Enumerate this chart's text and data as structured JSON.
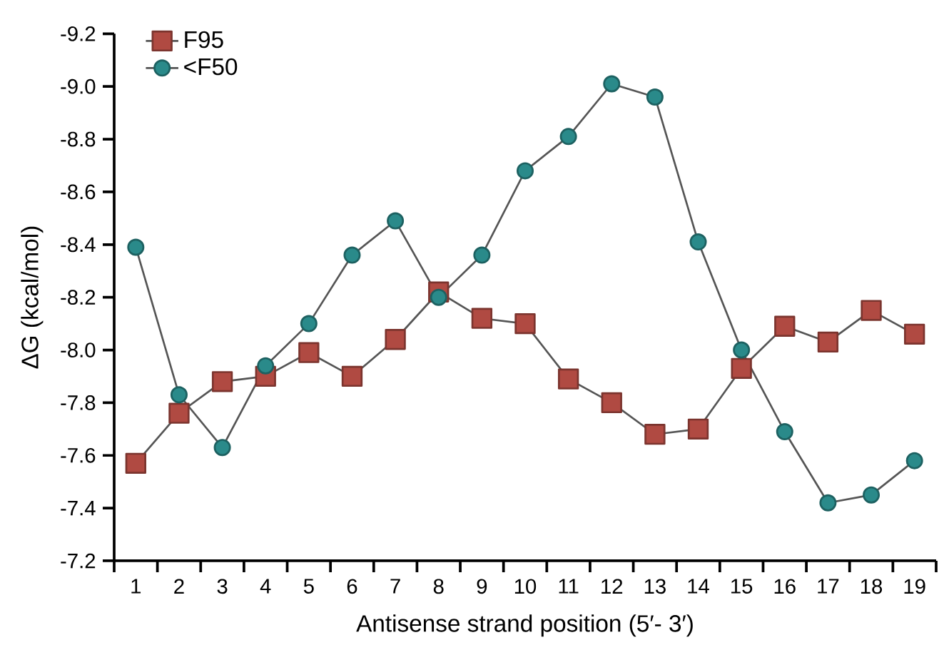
{
  "chart_data": {
    "type": "line",
    "xlabel": "Antisense strand position (5′- 3′)",
    "ylabel": "ΔG (kcal/mol)",
    "categories": [
      "1",
      "2",
      "3",
      "4",
      "5",
      "6",
      "7",
      "8",
      "9",
      "10",
      "11",
      "12",
      "13",
      "14",
      "15",
      "16",
      "17",
      "18",
      "19"
    ],
    "ylim": [
      -7.2,
      -9.2
    ],
    "yticks": [
      -7.2,
      -7.4,
      -7.6,
      -7.8,
      {
        "value": -8,
        "label": "-8.0"
      },
      -8.2,
      -8.4,
      -8.6,
      -8.8,
      {
        "value": -9,
        "label": "-9.0"
      },
      -9.2
    ],
    "legend": "top left",
    "line_style": "solid",
    "series": [
      {
        "name": "F95",
        "color": "#b04a42",
        "marker": "square",
        "values": [
          -7.57,
          -7.76,
          -7.88,
          -7.9,
          -7.99,
          -7.9,
          -8.04,
          -8.22,
          -8.12,
          -8.1,
          -7.89,
          -7.8,
          -7.68,
          -7.7,
          -7.93,
          -8.09,
          -8.03,
          -8.15,
          -8.06
        ]
      },
      {
        "name": "<F50",
        "color": "#2a8a8a",
        "marker": "circle",
        "values": [
          -8.39,
          -7.83,
          -7.63,
          -7.94,
          -8.1,
          -8.36,
          -8.49,
          -8.2,
          -8.36,
          -8.68,
          -8.81,
          -9.01,
          -8.96,
          -8.41,
          -8.0,
          -7.69,
          -7.42,
          -7.45,
          -7.58
        ]
      }
    ]
  }
}
